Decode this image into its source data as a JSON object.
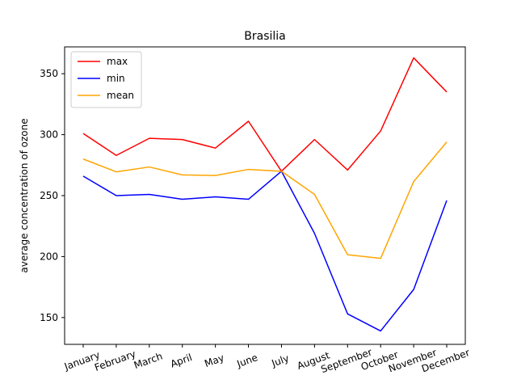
{
  "chart_data": {
    "type": "line",
    "title": "Brasilia",
    "xlabel": "",
    "ylabel": "average concentration of ozone",
    "categories": [
      "January",
      "February",
      "March",
      "April",
      "May",
      "June",
      "July",
      "August",
      "September",
      "October",
      "November",
      "December"
    ],
    "ylim": [
      128,
      372
    ],
    "yticks": [
      150,
      200,
      250,
      300,
      350
    ],
    "grid": false,
    "legend_position": "top-left",
    "series": [
      {
        "name": "max",
        "color": "#ff0000",
        "values": [
          301,
          283,
          297,
          296,
          289,
          311,
          270,
          296,
          271,
          303,
          363,
          335
        ]
      },
      {
        "name": " min",
        "color": "#0000ff",
        "values": [
          266,
          250,
          251,
          247,
          249,
          247,
          270,
          219,
          153,
          139,
          173,
          246
        ]
      },
      {
        "name": "mean",
        "color": "#ffa500",
        "values": [
          280,
          269.5,
          273.5,
          267,
          266.5,
          271.5,
          270,
          251,
          201.5,
          198.5,
          261.5,
          294
        ]
      }
    ]
  }
}
